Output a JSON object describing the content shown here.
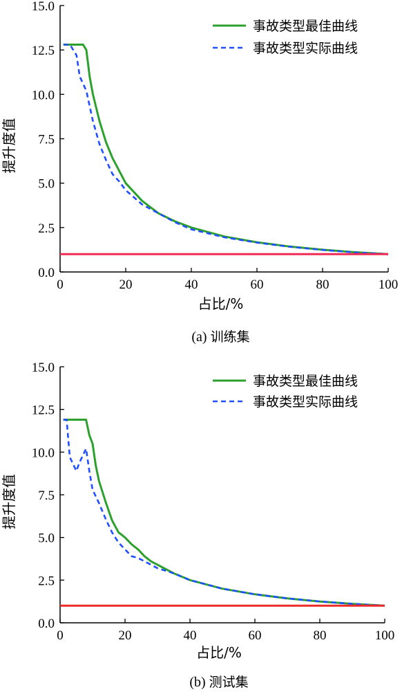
{
  "chart_data": [
    {
      "type": "line",
      "xlabel": "占比/%",
      "ylabel": "提升度值",
      "caption_prefix": "(a)",
      "caption": "训练集",
      "xlim": [
        0,
        100
      ],
      "ylim": [
        0,
        15
      ],
      "xticks": [
        "0",
        "20",
        "40",
        "60",
        "80",
        "100"
      ],
      "yticks": [
        "0.0",
        "2.5",
        "5.0",
        "7.5",
        "10.0",
        "12.5",
        "15.0"
      ],
      "legend_position": "top-right",
      "series": [
        {
          "name": "事故类型最佳曲线",
          "color": "#2ca02c",
          "style": "solid",
          "x": [
            1,
            7,
            8,
            9,
            10,
            12,
            14,
            16,
            18,
            20,
            25,
            30,
            35,
            40,
            50,
            60,
            70,
            80,
            90,
            100
          ],
          "y": [
            12.8,
            12.8,
            12.5,
            11.0,
            10.0,
            8.5,
            7.3,
            6.4,
            5.7,
            5.0,
            4.0,
            3.3,
            2.85,
            2.5,
            2.0,
            1.67,
            1.43,
            1.25,
            1.11,
            1.0
          ]
        },
        {
          "name": "事故类型实际曲线",
          "color": "#1f4fff",
          "style": "dashed",
          "x": [
            1,
            3,
            5,
            6,
            8,
            10,
            12,
            14,
            16,
            18,
            20,
            25,
            30,
            35,
            40,
            50,
            60,
            70,
            80,
            90,
            100
          ],
          "y": [
            12.8,
            12.8,
            12.2,
            11.0,
            10.2,
            8.5,
            7.2,
            6.3,
            5.5,
            5.1,
            4.6,
            3.8,
            3.3,
            2.8,
            2.4,
            1.95,
            1.65,
            1.42,
            1.24,
            1.1,
            1.0
          ]
        },
        {
          "name": "",
          "color": "#ee2a55",
          "style": "solid",
          "x": [
            0,
            100
          ],
          "y": [
            1.0,
            1.0
          ]
        }
      ]
    },
    {
      "type": "line",
      "xlabel": "占比/%",
      "ylabel": "提升度值",
      "caption_prefix": "(b)",
      "caption": "测试集",
      "xlim": [
        0,
        100
      ],
      "ylim": [
        0,
        15
      ],
      "xticks": [
        "0",
        "20",
        "40",
        "60",
        "80",
        "100"
      ],
      "yticks": [
        "0.0",
        "2.5",
        "5.0",
        "7.5",
        "10.0",
        "12.5",
        "15.0"
      ],
      "legend_position": "top-right",
      "series": [
        {
          "name": "事故类型最佳曲线",
          "color": "#2ca02c",
          "style": "solid",
          "x": [
            1,
            8,
            9,
            10,
            11,
            12,
            14,
            16,
            18,
            20,
            22,
            24,
            26,
            28,
            30,
            35,
            40,
            50,
            60,
            70,
            80,
            90,
            100
          ],
          "y": [
            11.9,
            11.9,
            11.0,
            10.5,
            9.2,
            8.3,
            7.1,
            6.0,
            5.3,
            5.0,
            4.6,
            4.3,
            3.9,
            3.6,
            3.4,
            2.9,
            2.5,
            2.0,
            1.67,
            1.43,
            1.25,
            1.11,
            1.0
          ]
        },
        {
          "name": "事故类型实际曲线",
          "color": "#1f4fff",
          "style": "dashed",
          "x": [
            1,
            2,
            3,
            5,
            6,
            8,
            9,
            10,
            12,
            14,
            16,
            18,
            20,
            22,
            24,
            26,
            28,
            30,
            35,
            40,
            50,
            60,
            70,
            80,
            90,
            100
          ],
          "y": [
            11.9,
            11.9,
            9.7,
            8.9,
            9.4,
            10.2,
            8.9,
            7.8,
            7.0,
            6.1,
            5.3,
            4.7,
            4.3,
            3.9,
            3.8,
            3.6,
            3.4,
            3.2,
            2.9,
            2.5,
            2.0,
            1.67,
            1.43,
            1.25,
            1.11,
            1.0
          ]
        },
        {
          "name": "",
          "color": "#ee2a2a",
          "style": "solid",
          "x": [
            0,
            100
          ],
          "y": [
            1.0,
            1.0
          ]
        }
      ]
    }
  ]
}
